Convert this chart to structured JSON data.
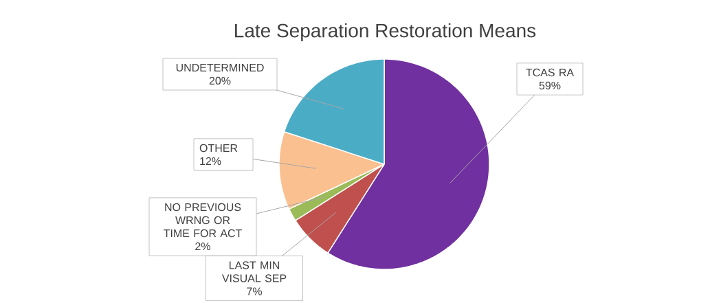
{
  "chart_data": {
    "type": "pie",
    "title": "Late Separation Restoration Means",
    "categories": [
      "TCAS RA",
      "LAST MIN VISUAL SEP",
      "NO PREVIOUS WRNG OR TIME FOR ACT",
      "OTHER",
      "UNDETERMINED"
    ],
    "values": [
      59,
      7,
      2,
      12,
      20
    ],
    "value_labels": [
      "59%",
      "7%",
      "2%",
      "12%",
      "20%"
    ],
    "colors": [
      "#7030a0",
      "#c0504d",
      "#9bbb59",
      "#fac090",
      "#4bacc6"
    ]
  }
}
